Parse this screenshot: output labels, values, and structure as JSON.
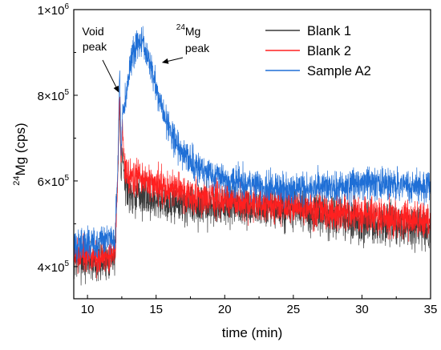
{
  "chart_data": {
    "type": "line",
    "xlabel": "time (min)",
    "ylabel": {
      "sup": "24",
      "main": "Mg (cps)"
    },
    "xlim": [
      9,
      35
    ],
    "ylim": [
      325000,
      1000000
    ],
    "xticks": [
      10,
      15,
      20,
      25,
      30,
      35
    ],
    "yticks": [
      {
        "value": 400000,
        "mant": "4×10",
        "exp": "5"
      },
      {
        "value": 600000,
        "mant": "6×10",
        "exp": "5"
      },
      {
        "value": 800000,
        "mant": "8×10",
        "exp": "5"
      },
      {
        "value": 1000000,
        "mant": "1×10",
        "exp": "6"
      }
    ],
    "legend_position": "top-right",
    "series": [
      {
        "name": "Blank 1",
        "color": "#3a3a3a",
        "noise": 38000,
        "x": [
          9,
          11,
          12,
          12.2,
          12.35,
          12.45,
          12.55,
          12.7,
          13,
          14,
          16,
          18,
          20,
          25,
          30,
          35
        ],
        "y": [
          420000,
          410000,
          430000,
          600000,
          790000,
          600000,
          680000,
          600000,
          575000,
          565000,
          550000,
          545000,
          540000,
          530000,
          505000,
          485000
        ]
      },
      {
        "name": "Blank 2",
        "color": "#ff2020",
        "noise": 33000,
        "x": [
          9,
          11,
          12,
          12.2,
          12.35,
          12.45,
          12.55,
          12.7,
          13,
          14,
          16,
          18,
          20,
          25,
          30,
          35
        ],
        "y": [
          425000,
          420000,
          440000,
          600000,
          810000,
          630000,
          730000,
          630000,
          610000,
          600000,
          580000,
          565000,
          555000,
          540000,
          520000,
          505000
        ]
      },
      {
        "name": "Sample A2",
        "color": "#1f6fd6",
        "noise": 30000,
        "x": [
          9,
          11,
          12,
          12.2,
          12.35,
          12.45,
          12.55,
          12.8,
          13.2,
          13.6,
          14,
          14.4,
          15,
          16,
          17,
          18,
          20,
          25,
          28,
          30,
          33,
          35
        ],
        "y": [
          450000,
          455000,
          465000,
          620000,
          870000,
          660000,
          760000,
          800000,
          880000,
          930000,
          920000,
          890000,
          820000,
          720000,
          660000,
          630000,
          600000,
          580000,
          585000,
          595000,
          590000,
          585000
        ]
      }
    ],
    "annotations": [
      {
        "text": [
          "Void",
          "peak"
        ],
        "target": {
          "x": 12.35,
          "y": 810000
        }
      },
      {
        "text": {
          "sup": "24",
          "main": "Mg",
          "line2": "peak"
        },
        "target": {
          "x": 15.3,
          "y": 880000
        }
      }
    ]
  }
}
